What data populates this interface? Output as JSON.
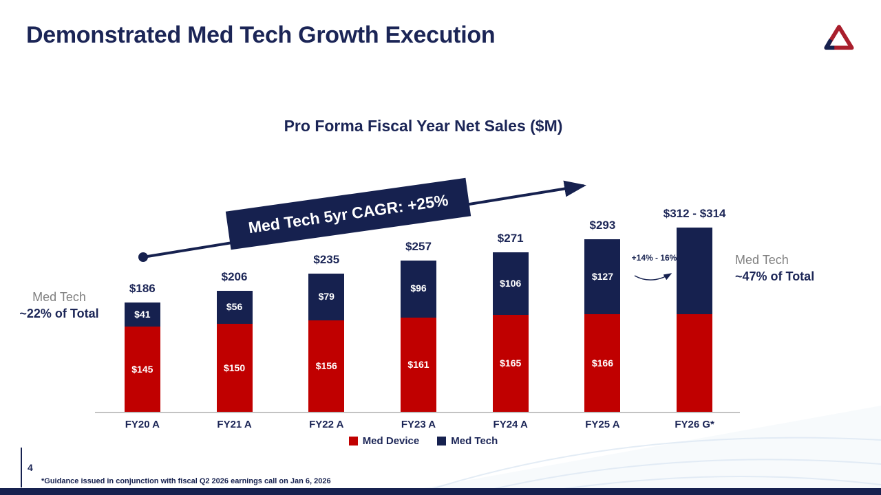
{
  "slide": {
    "title": "Demonstrated Med Tech Growth Execution",
    "page_number": "4",
    "footnote": "*Guidance issued in conjunction with fiscal Q2 2026 earnings call on Jan 6, 2026"
  },
  "colors": {
    "navy": "#16214F",
    "red": "#C00000",
    "gray_text": "#808080",
    "axis_gray": "#C3C3C3"
  },
  "chart_data": {
    "type": "bar",
    "stacked": true,
    "title": "Pro Forma Fiscal Year Net Sales ($M)",
    "categories": [
      "FY20 A",
      "FY21 A",
      "FY22 A",
      "FY23 A",
      "FY24 A",
      "FY25 A",
      "FY26 G*"
    ],
    "series": [
      {
        "name": "Med Device",
        "color": "#C00000",
        "values": [
          145,
          150,
          156,
          161,
          165,
          166,
          166
        ],
        "labels": [
          "$145",
          "$150",
          "$156",
          "$161",
          "$165",
          "$166",
          ""
        ]
      },
      {
        "name": "Med Tech",
        "color": "#16214F",
        "values": [
          41,
          56,
          79,
          96,
          106,
          127,
          147
        ],
        "labels": [
          "$41",
          "$56",
          "$79",
          "$96",
          "$106",
          "$127",
          ""
        ]
      }
    ],
    "totals": [
      "$186",
      "$206",
      "$235",
      "$257",
      "$271",
      "$293",
      "$312 - $314"
    ],
    "ylim": [
      0,
      330
    ],
    "grid": false,
    "legend_position": "bottom",
    "annotations": {
      "trend_banner": "Med Tech 5yr CAGR: +25%",
      "fy26_growth_range": "+14% - 16%",
      "left_callout_line1": "Med Tech",
      "left_callout_line2": "~22% of Total",
      "right_callout_line1": "Med Tech",
      "right_callout_line2": "~47% of Total"
    }
  }
}
